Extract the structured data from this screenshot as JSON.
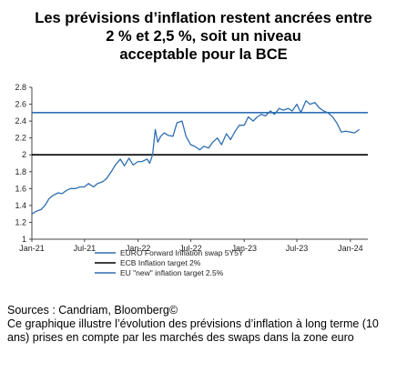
{
  "title_lines": [
    "Les prévisions d’inflation restent ancrées entre",
    "2 % et 2,5 %, soit un niveau",
    "acceptable pour la BCE"
  ],
  "footer": {
    "sources": "Sources : Candriam, Bloomberg©",
    "caption": "Ce graphique illustre l’évolution des prévisions d’inflation à long terme (10 ans) prises en compte par les marchés des swaps dans la zone euro"
  },
  "chart_data": {
    "type": "line",
    "title": "",
    "xlabel": "",
    "ylabel": "",
    "ylim": [
      1,
      2.8
    ],
    "y_ticks": [
      "1",
      "1.2",
      "1.4",
      "1.6",
      "1.8",
      "2",
      "2.2",
      "2.4",
      "2.6",
      "2.8"
    ],
    "x_ticks": [
      "Jan-21",
      "Jul-21",
      "Jan-22",
      "Jul-22",
      "Jan-23",
      "Jul-23",
      "Jan-24"
    ],
    "grid": false,
    "legend_position": "bottom",
    "series": [
      {
        "name": "EURO Forward Inflation swap 5Y5Y",
        "color": "#2f6fb2",
        "x": [
          "2021-01-01",
          "2021-01-15",
          "2021-02-01",
          "2021-02-15",
          "2021-03-01",
          "2021-03-15",
          "2021-04-01",
          "2021-04-15",
          "2021-05-01",
          "2021-05-15",
          "2021-06-01",
          "2021-06-15",
          "2021-07-01",
          "2021-07-15",
          "2021-08-01",
          "2021-08-15",
          "2021-09-01",
          "2021-09-15",
          "2021-10-01",
          "2021-10-15",
          "2021-11-01",
          "2021-11-15",
          "2021-12-01",
          "2021-12-15",
          "2022-01-01",
          "2022-01-15",
          "2022-02-01",
          "2022-02-10",
          "2022-02-20",
          "2022-03-01",
          "2022-03-10",
          "2022-03-20",
          "2022-04-01",
          "2022-04-15",
          "2022-05-01",
          "2022-05-15",
          "2022-06-01",
          "2022-06-15",
          "2022-07-01",
          "2022-07-15",
          "2022-08-01",
          "2022-08-15",
          "2022-09-01",
          "2022-09-15",
          "2022-10-01",
          "2022-10-15",
          "2022-11-01",
          "2022-11-15",
          "2022-12-01",
          "2022-12-15",
          "2023-01-01",
          "2023-01-15",
          "2023-02-01",
          "2023-02-15",
          "2023-03-01",
          "2023-03-15",
          "2023-04-01",
          "2023-04-15",
          "2023-05-01",
          "2023-05-15",
          "2023-06-01",
          "2023-06-15",
          "2023-07-01",
          "2023-07-15",
          "2023-08-01",
          "2023-08-15",
          "2023-09-01",
          "2023-09-15",
          "2023-10-01",
          "2023-10-15",
          "2023-11-01",
          "2023-11-15",
          "2023-12-01",
          "2023-12-15",
          "2024-01-01",
          "2024-01-15",
          "2024-02-01"
        ],
        "values": [
          1.3,
          1.33,
          1.35,
          1.4,
          1.48,
          1.52,
          1.55,
          1.54,
          1.58,
          1.6,
          1.6,
          1.62,
          1.62,
          1.66,
          1.62,
          1.66,
          1.68,
          1.72,
          1.8,
          1.88,
          1.95,
          1.87,
          1.96,
          1.88,
          1.92,
          1.92,
          1.95,
          1.9,
          2.0,
          2.3,
          2.15,
          2.22,
          2.26,
          2.23,
          2.22,
          2.38,
          2.4,
          2.22,
          2.12,
          2.1,
          2.06,
          2.1,
          2.08,
          2.15,
          2.2,
          2.12,
          2.25,
          2.18,
          2.28,
          2.35,
          2.35,
          2.45,
          2.4,
          2.45,
          2.48,
          2.46,
          2.52,
          2.48,
          2.55,
          2.53,
          2.55,
          2.52,
          2.6,
          2.5,
          2.64,
          2.6,
          2.62,
          2.56,
          2.52,
          2.5,
          2.45,
          2.38,
          2.27,
          2.28,
          2.27,
          2.26,
          2.3
        ]
      },
      {
        "name": "ECB Inflation target 2%",
        "color": "#000000",
        "value": 2.0
      },
      {
        "name": "EU \"new\" inflation target 2.5%",
        "color": "#2f6fb2",
        "value": 2.5
      }
    ]
  }
}
